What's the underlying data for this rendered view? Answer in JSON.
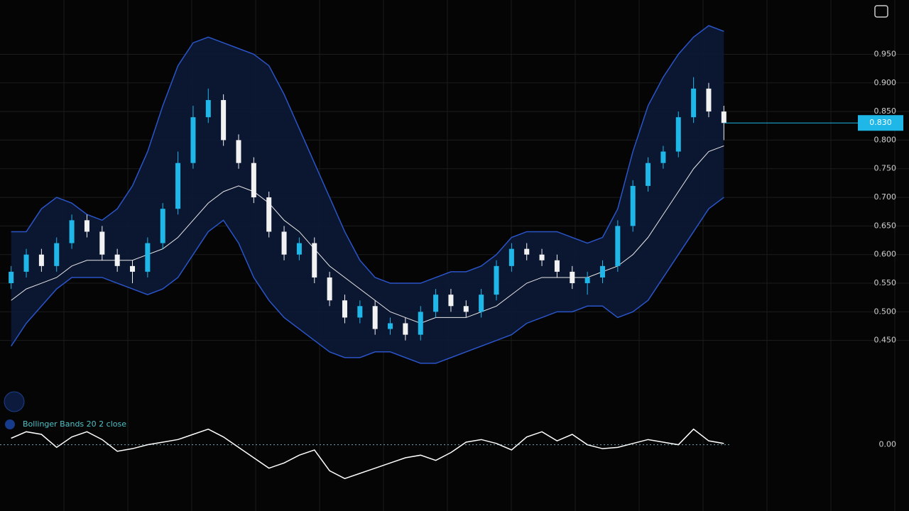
{
  "chart_data": {
    "type": "candlestick",
    "legend_text": "Bollinger Bands 20 2 close",
    "up_color": "#1fb7e8",
    "down_color": "#f2f2f2",
    "band_color": "#2a55c8",
    "band_fill": "#0c1836",
    "mid_color": "#e8e8e8",
    "ylim": [
      0.4,
      1.02
    ],
    "yticks": [
      {
        "value": 0.45,
        "label": "0.450"
      },
      {
        "value": 0.5,
        "label": "0.500"
      },
      {
        "value": 0.55,
        "label": "0.550"
      },
      {
        "value": 0.6,
        "label": "0.600"
      },
      {
        "value": 0.65,
        "label": "0.650"
      },
      {
        "value": 0.7,
        "label": "0.700"
      },
      {
        "value": 0.75,
        "label": "0.750"
      },
      {
        "value": 0.8,
        "label": "0.800"
      },
      {
        "value": 0.85,
        "label": "0.850"
      },
      {
        "value": 0.9,
        "label": "0.900"
      },
      {
        "value": 0.95,
        "label": "0.950"
      }
    ],
    "grid": true,
    "last_price": {
      "value": 0.83,
      "label": "0.830"
    },
    "open": [
      0.55,
      0.57,
      0.6,
      0.58,
      0.62,
      0.66,
      0.64,
      0.6,
      0.58,
      0.57,
      0.62,
      0.68,
      0.76,
      0.84,
      0.87,
      0.8,
      0.76,
      0.7,
      0.64,
      0.6,
      0.62,
      0.56,
      0.52,
      0.49,
      0.51,
      0.47,
      0.48,
      0.46,
      0.5,
      0.53,
      0.51,
      0.5,
      0.53,
      0.58,
      0.61,
      0.6,
      0.59,
      0.57,
      0.55,
      0.56,
      0.58,
      0.65,
      0.72,
      0.76,
      0.78,
      0.84,
      0.89,
      0.85
    ],
    "high": [
      0.58,
      0.61,
      0.61,
      0.63,
      0.67,
      0.67,
      0.65,
      0.61,
      0.59,
      0.63,
      0.69,
      0.78,
      0.86,
      0.89,
      0.88,
      0.81,
      0.77,
      0.71,
      0.65,
      0.63,
      0.63,
      0.57,
      0.53,
      0.52,
      0.52,
      0.49,
      0.49,
      0.51,
      0.54,
      0.54,
      0.52,
      0.54,
      0.59,
      0.62,
      0.62,
      0.61,
      0.6,
      0.58,
      0.57,
      0.59,
      0.66,
      0.73,
      0.77,
      0.79,
      0.85,
      0.91,
      0.9,
      0.86
    ],
    "low": [
      0.54,
      0.56,
      0.57,
      0.57,
      0.61,
      0.63,
      0.59,
      0.57,
      0.55,
      0.56,
      0.61,
      0.67,
      0.75,
      0.83,
      0.79,
      0.75,
      0.69,
      0.63,
      0.59,
      0.59,
      0.55,
      0.51,
      0.48,
      0.48,
      0.46,
      0.46,
      0.45,
      0.45,
      0.49,
      0.5,
      0.49,
      0.49,
      0.52,
      0.57,
      0.59,
      0.58,
      0.56,
      0.54,
      0.53,
      0.55,
      0.57,
      0.64,
      0.71,
      0.75,
      0.77,
      0.83,
      0.84,
      0.8
    ],
    "close": [
      0.57,
      0.6,
      0.58,
      0.62,
      0.66,
      0.64,
      0.6,
      0.58,
      0.57,
      0.62,
      0.68,
      0.76,
      0.84,
      0.87,
      0.8,
      0.76,
      0.7,
      0.64,
      0.6,
      0.62,
      0.56,
      0.52,
      0.49,
      0.51,
      0.47,
      0.48,
      0.46,
      0.5,
      0.53,
      0.51,
      0.5,
      0.53,
      0.58,
      0.61,
      0.6,
      0.59,
      0.57,
      0.55,
      0.56,
      0.58,
      0.65,
      0.72,
      0.76,
      0.78,
      0.84,
      0.89,
      0.85,
      0.83
    ],
    "upper": [
      0.64,
      0.64,
      0.68,
      0.7,
      0.69,
      0.67,
      0.66,
      0.68,
      0.72,
      0.78,
      0.86,
      0.93,
      0.97,
      0.98,
      0.97,
      0.96,
      0.95,
      0.93,
      0.88,
      0.82,
      0.76,
      0.7,
      0.64,
      0.59,
      0.56,
      0.55,
      0.55,
      0.55,
      0.56,
      0.57,
      0.57,
      0.58,
      0.6,
      0.63,
      0.64,
      0.64,
      0.64,
      0.63,
      0.62,
      0.63,
      0.68,
      0.78,
      0.86,
      0.91,
      0.95,
      0.98,
      1.0,
      0.99
    ],
    "middle": [
      0.52,
      0.54,
      0.55,
      0.56,
      0.58,
      0.59,
      0.59,
      0.59,
      0.59,
      0.6,
      0.61,
      0.63,
      0.66,
      0.69,
      0.71,
      0.72,
      0.71,
      0.69,
      0.66,
      0.64,
      0.61,
      0.58,
      0.56,
      0.54,
      0.52,
      0.5,
      0.49,
      0.48,
      0.49,
      0.49,
      0.49,
      0.5,
      0.51,
      0.53,
      0.55,
      0.56,
      0.56,
      0.56,
      0.56,
      0.57,
      0.58,
      0.6,
      0.63,
      0.67,
      0.71,
      0.75,
      0.78,
      0.79
    ],
    "lower": [
      0.44,
      0.48,
      0.51,
      0.54,
      0.56,
      0.56,
      0.56,
      0.55,
      0.54,
      0.53,
      0.54,
      0.56,
      0.6,
      0.64,
      0.66,
      0.62,
      0.56,
      0.52,
      0.49,
      0.47,
      0.45,
      0.43,
      0.42,
      0.42,
      0.43,
      0.43,
      0.42,
      0.41,
      0.41,
      0.42,
      0.43,
      0.44,
      0.45,
      0.46,
      0.48,
      0.49,
      0.5,
      0.5,
      0.51,
      0.51,
      0.49,
      0.5,
      0.52,
      0.56,
      0.6,
      0.64,
      0.68,
      0.7
    ],
    "oscillator": {
      "values": [
        5,
        10,
        8,
        -2,
        6,
        10,
        4,
        -5,
        -3,
        0,
        2,
        4,
        8,
        12,
        6,
        -2,
        -10,
        -18,
        -14,
        -8,
        -4,
        -20,
        -26,
        -22,
        -18,
        -14,
        -10,
        -8,
        -12,
        -6,
        2,
        4,
        1,
        -4,
        6,
        10,
        3,
        8,
        0,
        -3,
        -2,
        1,
        4,
        2,
        0,
        12,
        3,
        1
      ],
      "color": "#ffffff",
      "ylim": [
        -40,
        20
      ],
      "yticks": [
        {
          "value": 0,
          "label": "0.00"
        }
      ]
    }
  }
}
